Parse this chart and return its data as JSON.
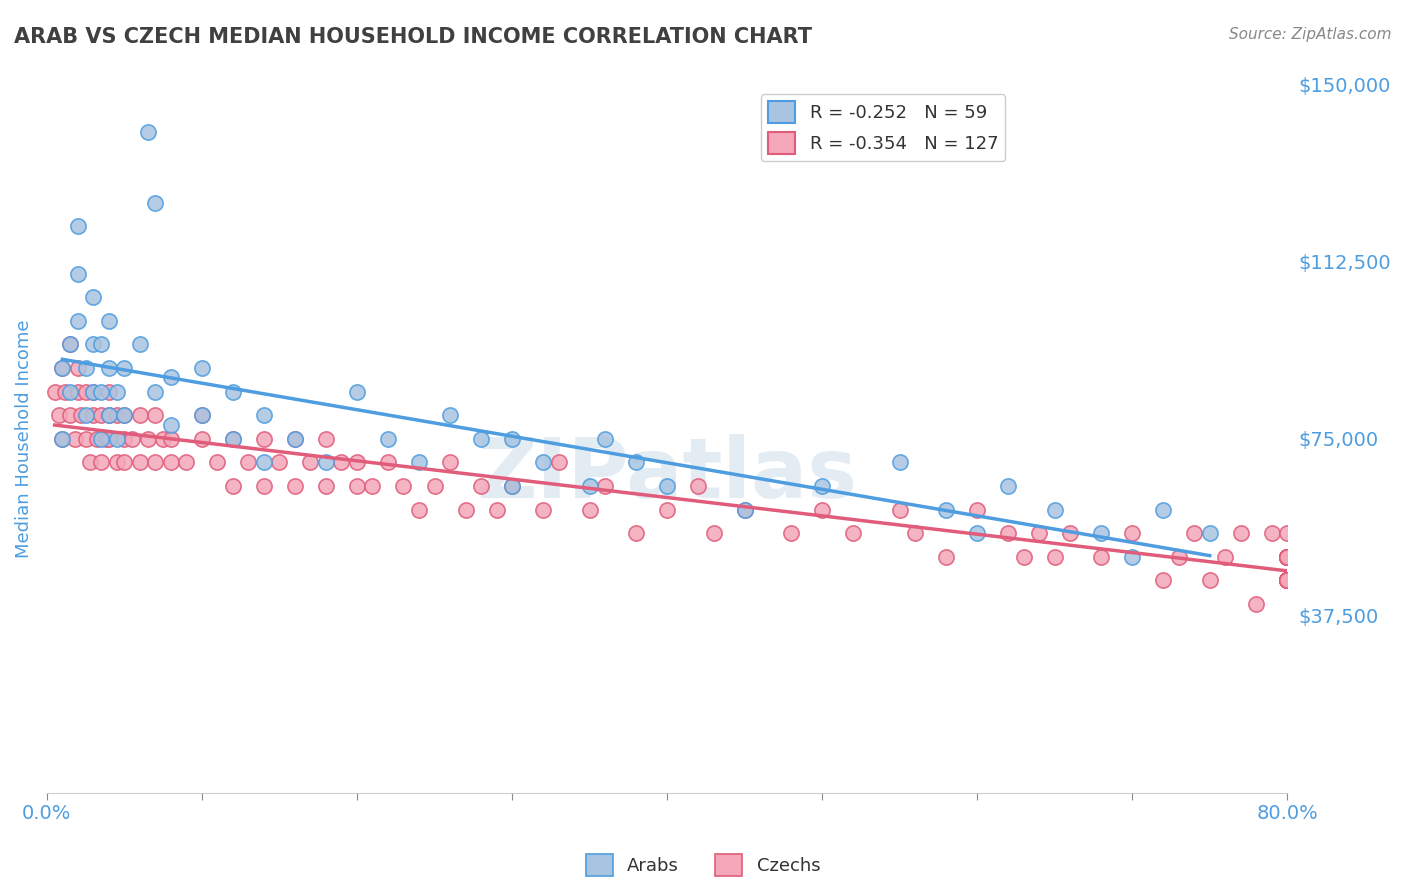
{
  "title": "ARAB VS CZECH MEDIAN HOUSEHOLD INCOME CORRELATION CHART",
  "source": "Source: ZipAtlas.com",
  "xlabel": "",
  "ylabel": "Median Household Income",
  "xlim": [
    0,
    0.8
  ],
  "ylim": [
    0,
    150000
  ],
  "yticks": [
    0,
    37500,
    75000,
    112500,
    150000
  ],
  "ytick_labels": [
    "",
    "$37,500",
    "$75,000",
    "$112,500",
    "$150,000"
  ],
  "xticks": [
    0.0,
    0.1,
    0.2,
    0.3,
    0.4,
    0.5,
    0.6,
    0.7,
    0.8
  ],
  "xtick_labels": [
    "0.0%",
    "",
    "",
    "",
    "",
    "",
    "",
    "",
    "80.0%"
  ],
  "arab_R": -0.252,
  "arab_N": 59,
  "czech_R": -0.354,
  "czech_N": 127,
  "arab_color": "#a8c4e0",
  "czech_color": "#f4a7b9",
  "arab_line_color": "#4d9de0",
  "czech_line_color": "#e05c7a",
  "watermark": "ZIPatlas",
  "watermark_color": "#c8d8e8",
  "background_color": "#ffffff",
  "title_color": "#404040",
  "axis_label_color": "#4d9de0",
  "tick_color": "#4d9de0",
  "grid_color": "#d0d8e8",
  "legend_box_color_arab": "#a8c4e0",
  "legend_box_color_czech": "#f4a7b9",
  "arab_scatter_x": [
    0.01,
    0.01,
    0.015,
    0.015,
    0.02,
    0.02,
    0.02,
    0.025,
    0.025,
    0.03,
    0.03,
    0.03,
    0.035,
    0.035,
    0.035,
    0.04,
    0.04,
    0.04,
    0.045,
    0.045,
    0.05,
    0.05,
    0.06,
    0.065,
    0.07,
    0.07,
    0.08,
    0.08,
    0.1,
    0.1,
    0.12,
    0.12,
    0.14,
    0.14,
    0.16,
    0.18,
    0.2,
    0.22,
    0.24,
    0.26,
    0.28,
    0.3,
    0.3,
    0.32,
    0.35,
    0.36,
    0.38,
    0.4,
    0.45,
    0.5,
    0.55,
    0.58,
    0.6,
    0.62,
    0.65,
    0.68,
    0.7,
    0.72,
    0.75
  ],
  "arab_scatter_y": [
    90000,
    75000,
    85000,
    95000,
    100000,
    110000,
    120000,
    80000,
    90000,
    85000,
    95000,
    105000,
    75000,
    85000,
    95000,
    80000,
    90000,
    100000,
    75000,
    85000,
    80000,
    90000,
    95000,
    140000,
    125000,
    85000,
    78000,
    88000,
    80000,
    90000,
    75000,
    85000,
    70000,
    80000,
    75000,
    70000,
    85000,
    75000,
    70000,
    80000,
    75000,
    65000,
    75000,
    70000,
    65000,
    75000,
    70000,
    65000,
    60000,
    65000,
    70000,
    60000,
    55000,
    65000,
    60000,
    55000,
    50000,
    60000,
    55000
  ],
  "czech_scatter_x": [
    0.005,
    0.008,
    0.01,
    0.01,
    0.012,
    0.015,
    0.015,
    0.018,
    0.02,
    0.02,
    0.022,
    0.025,
    0.025,
    0.028,
    0.03,
    0.03,
    0.032,
    0.035,
    0.035,
    0.038,
    0.04,
    0.04,
    0.04,
    0.045,
    0.045,
    0.05,
    0.05,
    0.05,
    0.055,
    0.06,
    0.06,
    0.065,
    0.07,
    0.07,
    0.075,
    0.08,
    0.08,
    0.09,
    0.1,
    0.1,
    0.11,
    0.12,
    0.12,
    0.13,
    0.14,
    0.14,
    0.15,
    0.16,
    0.16,
    0.17,
    0.18,
    0.18,
    0.19,
    0.2,
    0.2,
    0.21,
    0.22,
    0.23,
    0.24,
    0.25,
    0.26,
    0.27,
    0.28,
    0.29,
    0.3,
    0.32,
    0.33,
    0.35,
    0.36,
    0.38,
    0.4,
    0.42,
    0.43,
    0.45,
    0.48,
    0.5,
    0.52,
    0.55,
    0.56,
    0.58,
    0.6,
    0.62,
    0.63,
    0.64,
    0.65,
    0.66,
    0.68,
    0.7,
    0.72,
    0.73,
    0.74,
    0.75,
    0.76,
    0.77,
    0.78,
    0.79,
    0.8,
    0.8,
    0.8,
    0.8,
    0.8,
    0.8,
    0.8,
    0.8,
    0.8,
    0.8,
    0.8,
    0.8,
    0.8,
    0.8,
    0.8,
    0.8,
    0.8,
    0.8,
    0.8,
    0.8,
    0.8,
    0.8,
    0.8,
    0.8,
    0.8,
    0.8,
    0.8,
    0.8,
    0.8,
    0.8,
    0.8
  ],
  "czech_scatter_y": [
    85000,
    80000,
    90000,
    75000,
    85000,
    80000,
    95000,
    75000,
    85000,
    90000,
    80000,
    75000,
    85000,
    70000,
    80000,
    85000,
    75000,
    80000,
    70000,
    75000,
    80000,
    75000,
    85000,
    70000,
    80000,
    75000,
    70000,
    80000,
    75000,
    70000,
    80000,
    75000,
    70000,
    80000,
    75000,
    70000,
    75000,
    70000,
    75000,
    80000,
    70000,
    75000,
    65000,
    70000,
    75000,
    65000,
    70000,
    65000,
    75000,
    70000,
    65000,
    75000,
    70000,
    65000,
    70000,
    65000,
    70000,
    65000,
    60000,
    65000,
    70000,
    60000,
    65000,
    60000,
    65000,
    60000,
    70000,
    60000,
    65000,
    55000,
    60000,
    65000,
    55000,
    60000,
    55000,
    60000,
    55000,
    60000,
    55000,
    50000,
    60000,
    55000,
    50000,
    55000,
    50000,
    55000,
    50000,
    55000,
    45000,
    50000,
    55000,
    45000,
    50000,
    55000,
    40000,
    55000,
    50000,
    45000,
    55000,
    50000,
    45000,
    50000,
    45000,
    50000,
    45000,
    50000,
    45000,
    50000,
    45000,
    50000,
    45000,
    50000,
    45000,
    50000,
    45000,
    50000,
    45000,
    50000,
    45000,
    50000,
    45000,
    50000,
    45000,
    50000,
    45000,
    50000,
    45000
  ]
}
